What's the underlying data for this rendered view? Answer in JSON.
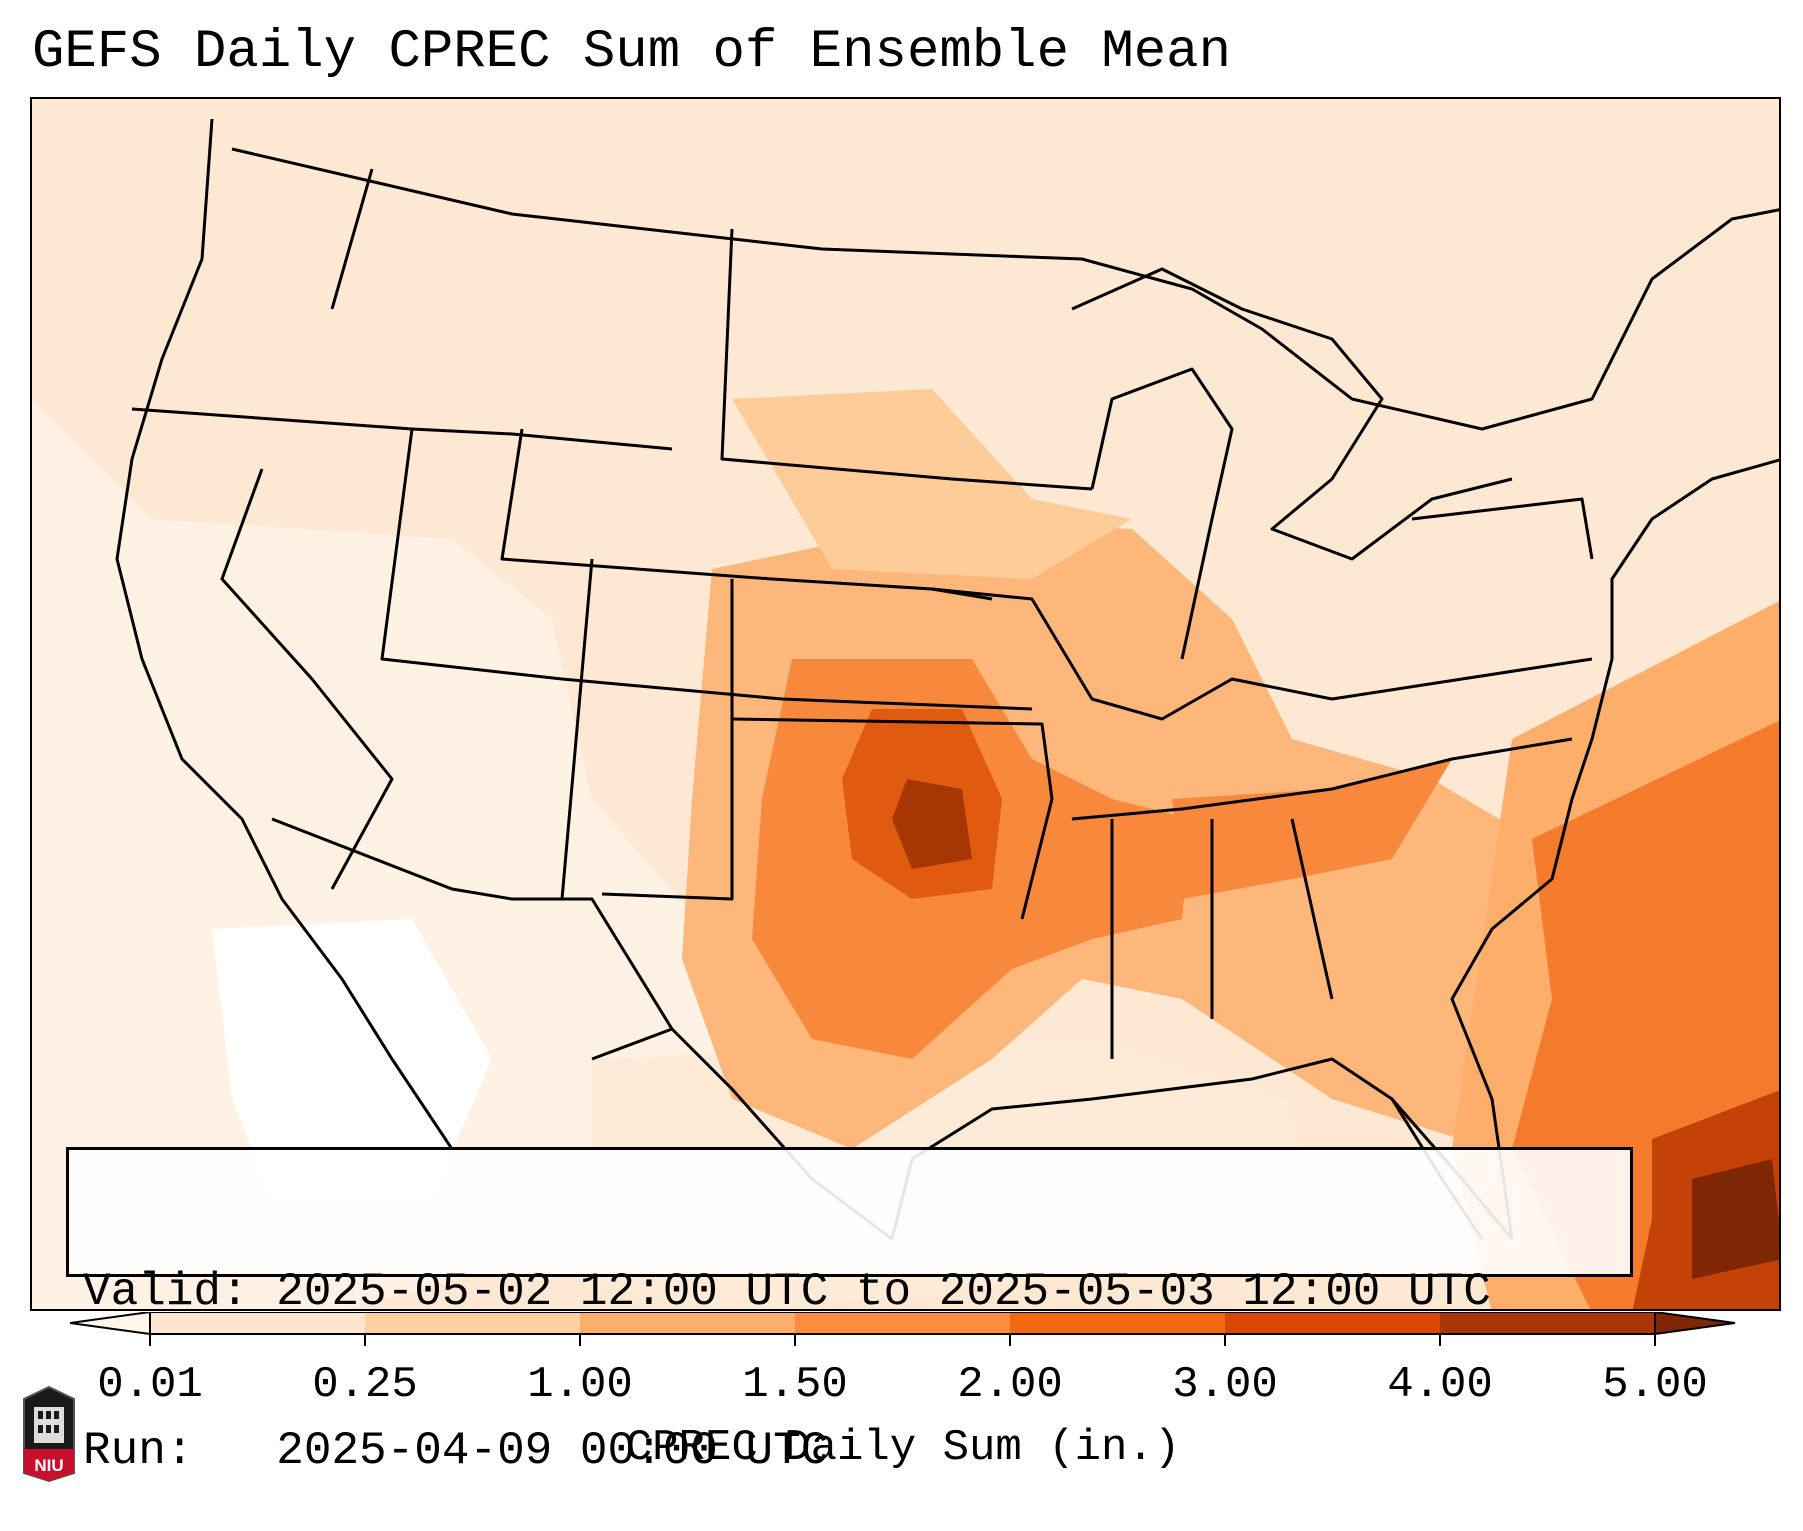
{
  "title": "GEFS Daily CPREC Sum of Ensemble Mean",
  "info": {
    "valid_line": "Valid: 2025-05-02 12:00 UTC to 2025-05-03 12:00 UTC",
    "run_line": "Run:   2025-04-09 00:00 UTC"
  },
  "colorbar": {
    "title": "CPREC Daily Sum (in.)",
    "ticks": [
      "0.01",
      "0.25",
      "1.00",
      "1.50",
      "2.00",
      "3.00",
      "4.00",
      "5.00"
    ],
    "colors": [
      "#fee6ce",
      "#fdd0a2",
      "#fdae6b",
      "#fd8d3c",
      "#f16913",
      "#d94801",
      "#a63603"
    ],
    "under_color": "#fff5eb",
    "over_color": "#7f2704"
  },
  "logo": {
    "text": "NIU"
  }
}
